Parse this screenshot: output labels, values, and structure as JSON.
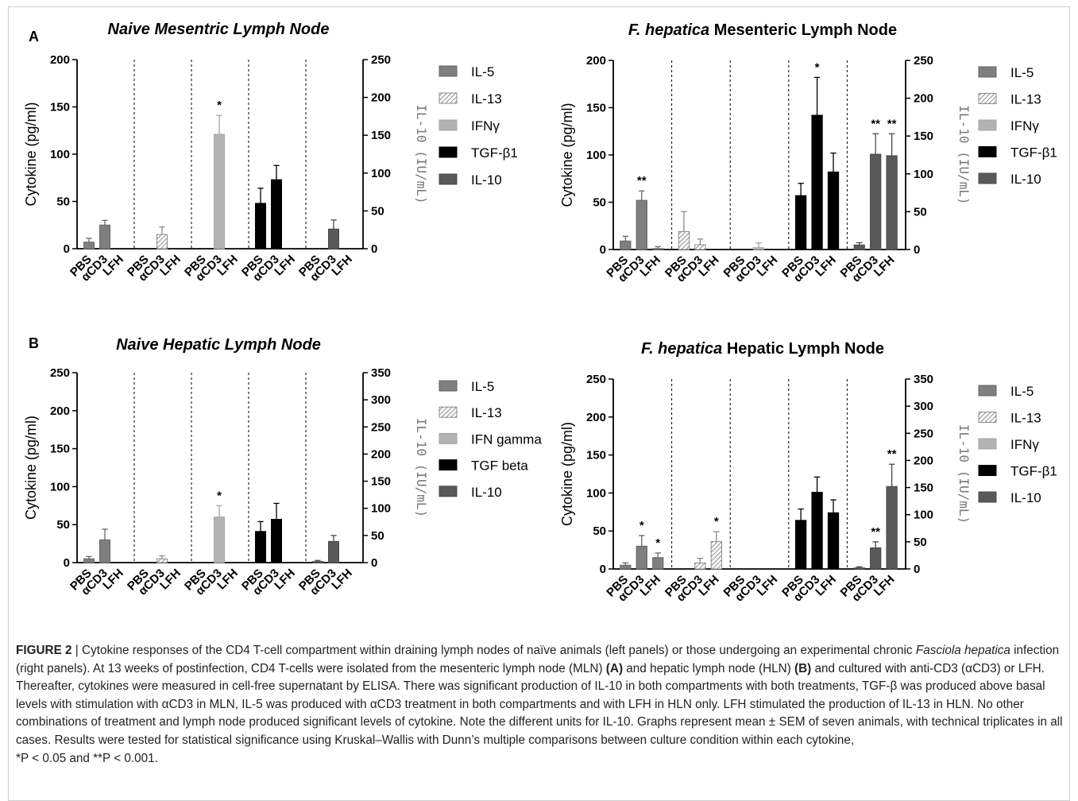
{
  "panel_labels": [
    "A",
    "B"
  ],
  "caption": {
    "figure_label": "FIGURE 2",
    "separator": " | ",
    "p1": "Cytokine responses of the CD4 T-cell compartment within draining lymph nodes of naïve animals (left panels) or those undergoing an experimental chronic ",
    "species": "Fasciola hepatica",
    "p2": " infection (right panels). At 13 weeks of postinfection, CD4 T-cells were isolated from the mesenteric lymph node (MLN) ",
    "ref_a": "(A)",
    "p3": " and hepatic lymph node (HLN) ",
    "ref_b": "(B)",
    "p4": " and cultured with anti-CD3 (αCD3) or LFH. Thereafter, cytokines were measured in cell-free supernatant by ELISA. There was significant production of IL-10 in both compartments with both treatments, TGF-β was produced above basal levels with stimulation with αCD3 in MLN, IL-5 was produced with αCD3 treatment in both compartments and with LFH in HLN only. LFH stimulated the production of IL-13 in HLN. No other combinations of treatment and lymph node produced significant levels of cytokine. Note the different units for IL-10. Graphs represent mean ± SEM of seven animals, with technical triplicates in all cases. Results were tested for statistical significance using Kruskal–Wallis with Dunn’s multiple comparisons between culture condition within each cytokine, ",
    "p_single": "*P < 0.05 and **P < 0.001."
  },
  "colors": {
    "IL-5": "#7f7f7f",
    "IL-13": "#ffffff",
    "IFN": "#b3b3b3",
    "TGF": "#000000",
    "IL-10": "#595959",
    "hatch": "#8a8a8a"
  },
  "chart_data": [
    {
      "type": "bar",
      "title_italic": "Naive Mesentric Lymph Node",
      "title_plain": "",
      "title_style": "italic",
      "ylabel": "Cytokine (pg/ml)",
      "y2label": "IL-10 (IU/mL)",
      "ylim": [
        0,
        200
      ],
      "yticks": [
        0,
        50,
        100,
        150,
        200
      ],
      "y2lim": [
        0,
        250
      ],
      "y2ticks": [
        0,
        50,
        100,
        150,
        200,
        250
      ],
      "categories": [
        "PBS",
        "αCD3",
        "LFH"
      ],
      "legend": [
        "IL-5",
        "IL-13",
        "IFNγ",
        "TGF-β1",
        "IL-10"
      ],
      "series": [
        {
          "name": "IL-5",
          "values": [
            7,
            25,
            null
          ],
          "errors": [
            4,
            5,
            null
          ],
          "sig": [
            "",
            "",
            ""
          ]
        },
        {
          "name": "IL-13",
          "values": [
            null,
            15,
            null
          ],
          "errors": [
            null,
            8,
            null
          ],
          "sig": [
            "",
            "",
            ""
          ]
        },
        {
          "name": "IFNγ",
          "values": [
            null,
            121,
            null
          ],
          "errors": [
            null,
            20,
            null
          ],
          "sig": [
            "",
            "*",
            ""
          ]
        },
        {
          "name": "TGF-β1",
          "values": [
            48,
            73,
            null
          ],
          "errors": [
            16,
            15,
            null
          ],
          "sig": [
            "",
            "",
            ""
          ]
        },
        {
          "name": "IL-10",
          "values": [
            null,
            26,
            null
          ],
          "errors": [
            null,
            12,
            null
          ],
          "sig": [
            "",
            "",
            ""
          ]
        }
      ]
    },
    {
      "type": "bar",
      "title_italic": "F. hepatica",
      "title_plain": " Mesenteric Lymph  Node",
      "title_style": "mixed",
      "ylabel": "Cytokine (pg/ml)",
      "y2label": "IL-10 (IU/mL)",
      "ylim": [
        0,
        200
      ],
      "yticks": [
        0,
        50,
        100,
        150,
        200
      ],
      "y2lim": [
        0,
        250
      ],
      "y2ticks": [
        0,
        50,
        100,
        150,
        200,
        250
      ],
      "categories": [
        "PBS",
        "αCD3",
        "LFH"
      ],
      "legend": [
        "IL-5",
        "IL-13",
        "IFNγ",
        "TGF-β1",
        "IL-10"
      ],
      "series": [
        {
          "name": "IL-5",
          "values": [
            9,
            52,
            1
          ],
          "errors": [
            5,
            10,
            2
          ],
          "sig": [
            "",
            "**",
            ""
          ]
        },
        {
          "name": "IL-13",
          "values": [
            19,
            5,
            null
          ],
          "errors": [
            21,
            6,
            null
          ],
          "sig": [
            "",
            "",
            ""
          ]
        },
        {
          "name": "IFNγ",
          "values": [
            null,
            2,
            null
          ],
          "errors": [
            null,
            5,
            null
          ],
          "sig": [
            "",
            "",
            ""
          ]
        },
        {
          "name": "TGF-β1",
          "values": [
            57,
            142,
            82
          ],
          "errors": [
            13,
            40,
            20
          ],
          "sig": [
            "",
            "*",
            ""
          ]
        },
        {
          "name": "IL-10",
          "values": [
            6,
            126,
            124
          ],
          "errors": [
            3,
            27,
            29
          ],
          "sig": [
            "",
            "**",
            "**"
          ]
        }
      ]
    },
    {
      "type": "bar",
      "title_italic": "Naive Hepatic Lymph Node",
      "title_plain": "",
      "title_style": "italic",
      "ylabel": "Cytokine (pg/ml)",
      "y2label": "IL-10 (IU/mL)",
      "ylim": [
        0,
        250
      ],
      "yticks": [
        0,
        50,
        100,
        150,
        200,
        250
      ],
      "y2lim": [
        0,
        350
      ],
      "y2ticks": [
        0,
        50,
        100,
        150,
        200,
        250,
        300,
        350
      ],
      "categories": [
        "PBS",
        "αCD3",
        "LFH"
      ],
      "legend": [
        "IL-5",
        "IL-13",
        "IFN gamma",
        "TGF beta",
        "IL-10"
      ],
      "series": [
        {
          "name": "IL-5",
          "values": [
            5,
            30,
            null
          ],
          "errors": [
            3,
            14,
            null
          ],
          "sig": [
            "",
            "",
            ""
          ]
        },
        {
          "name": "IL-13",
          "values": [
            null,
            5,
            null
          ],
          "errors": [
            null,
            4,
            null
          ],
          "sig": [
            "",
            "",
            ""
          ]
        },
        {
          "name": "IFN gamma",
          "values": [
            null,
            60,
            null
          ],
          "errors": [
            null,
            15,
            null
          ],
          "sig": [
            "",
            "*",
            ""
          ]
        },
        {
          "name": "TGF beta",
          "values": [
            41,
            57,
            null
          ],
          "errors": [
            13,
            21,
            null
          ],
          "sig": [
            "",
            "",
            ""
          ]
        },
        {
          "name": "IL-10",
          "values": [
            2,
            39,
            null
          ],
          "errors": [
            2,
            11,
            null
          ],
          "sig": [
            "",
            "",
            ""
          ]
        }
      ]
    },
    {
      "type": "bar",
      "title_italic": "F. hepatica",
      "title_plain": " Hepatic Lymph Node",
      "title_style": "mixed",
      "ylabel": "Cytokine (pg/ml)",
      "y2label": "IL-10 (IU/mL)",
      "ylim": [
        0,
        250
      ],
      "yticks": [
        0,
        50,
        100,
        150,
        200,
        250
      ],
      "y2lim": [
        0,
        350
      ],
      "y2ticks": [
        0,
        50,
        100,
        150,
        200,
        250,
        300,
        350
      ],
      "categories": [
        "PBS",
        "αCD3",
        "LFH"
      ],
      "legend": [
        "IL-5",
        "IL-13",
        "IFNγ",
        "TGF-β1",
        "IL-10"
      ],
      "series": [
        {
          "name": "IL-5",
          "values": [
            5,
            30,
            15
          ],
          "errors": [
            3,
            14,
            6
          ],
          "sig": [
            "",
            "*",
            "*"
          ]
        },
        {
          "name": "IL-13",
          "values": [
            null,
            8,
            36
          ],
          "errors": [
            null,
            6,
            13
          ],
          "sig": [
            "",
            "",
            "*"
          ]
        },
        {
          "name": "IFNγ",
          "values": [
            null,
            null,
            null
          ],
          "errors": [
            null,
            null,
            null
          ],
          "sig": [
            "",
            "",
            ""
          ]
        },
        {
          "name": "TGF-β1",
          "values": [
            64,
            101,
            74
          ],
          "errors": [
            15,
            20,
            17
          ],
          "sig": [
            "",
            "",
            ""
          ]
        },
        {
          "name": "IL-10",
          "values": [
            2,
            39,
            152
          ],
          "errors": [
            2,
            11,
            41
          ],
          "sig": [
            "",
            "**",
            "**"
          ]
        }
      ]
    }
  ]
}
